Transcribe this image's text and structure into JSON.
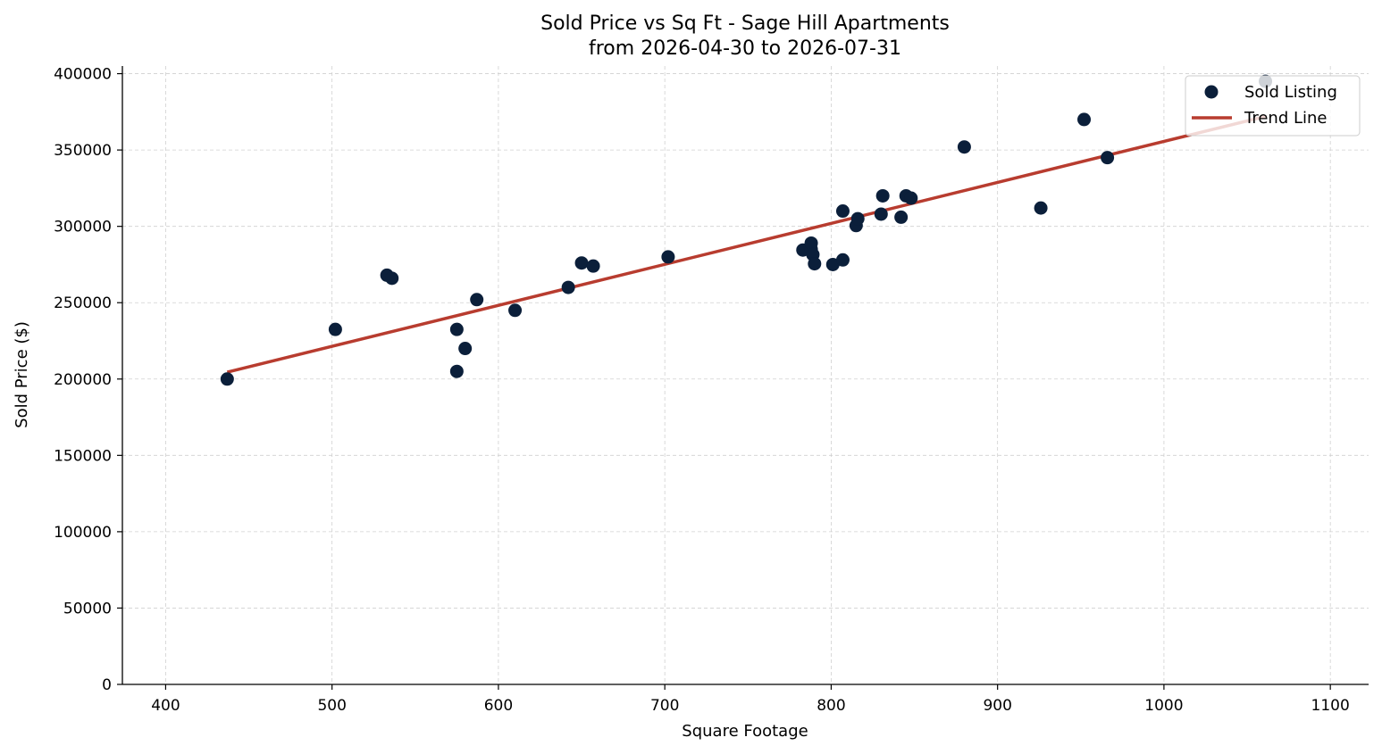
{
  "chart_data": {
    "type": "scatter",
    "title_line1": "Sold Price vs Sq Ft - Sage Hill Apartments",
    "title_line2": "from 2026-04-30 to 2026-07-31",
    "xlabel": "Square Footage",
    "ylabel": "Sold Price ($)",
    "xlim": [
      374,
      1123
    ],
    "ylim": [
      0,
      405000
    ],
    "xticks": [
      400,
      500,
      600,
      700,
      800,
      900,
      1000,
      1100
    ],
    "yticks": [
      0,
      50000,
      100000,
      150000,
      200000,
      250000,
      300000,
      350000,
      400000
    ],
    "grid": true,
    "legend": {
      "position": "top-right",
      "entries": [
        "Sold Listing",
        "Trend Line"
      ]
    },
    "colors": {
      "points": "#0b1f3a",
      "trend": "#b83c2f"
    },
    "series": [
      {
        "name": "Sold Listing",
        "kind": "scatter",
        "points": [
          [
            437,
            200000
          ],
          [
            502,
            232500
          ],
          [
            533,
            268000
          ],
          [
            536,
            266000
          ],
          [
            575,
            232500
          ],
          [
            575,
            205000
          ],
          [
            580,
            220000
          ],
          [
            587,
            252000
          ],
          [
            610,
            245000
          ],
          [
            642,
            260000
          ],
          [
            650,
            276000
          ],
          [
            657,
            274000
          ],
          [
            702,
            280000
          ],
          [
            783,
            284500
          ],
          [
            788,
            285000
          ],
          [
            788,
            289000
          ],
          [
            789,
            281500
          ],
          [
            790,
            275500
          ],
          [
            801,
            275000
          ],
          [
            807,
            310000
          ],
          [
            807,
            278000
          ],
          [
            815,
            300500
          ],
          [
            816,
            305000
          ],
          [
            830,
            308000
          ],
          [
            831,
            320000
          ],
          [
            842,
            306000
          ],
          [
            845,
            320000
          ],
          [
            848,
            318500
          ],
          [
            880,
            352000
          ],
          [
            926,
            312000
          ],
          [
            952,
            370000
          ],
          [
            966,
            345000
          ],
          [
            1061,
            395000
          ]
        ]
      },
      {
        "name": "Trend Line",
        "kind": "line",
        "points": [
          [
            437,
            204500
          ],
          [
            1061,
            372000
          ]
        ]
      }
    ]
  }
}
